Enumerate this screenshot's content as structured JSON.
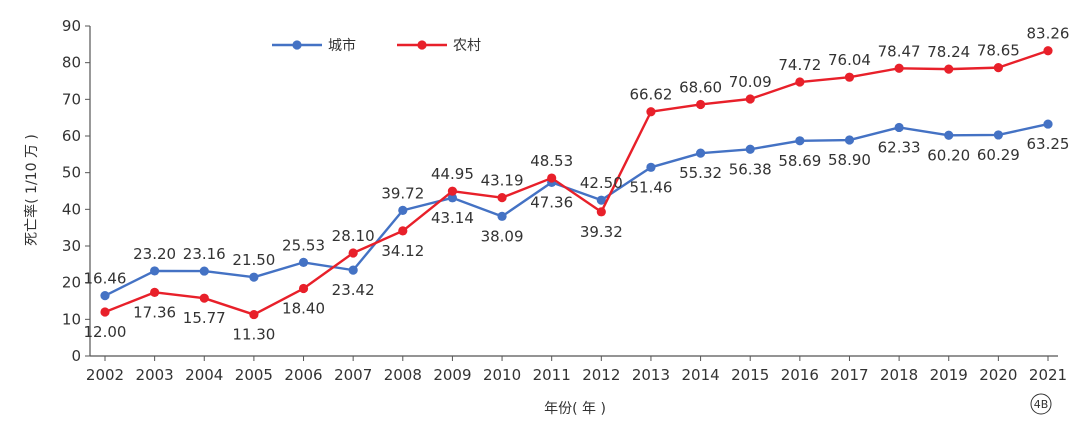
{
  "chart_data": {
    "type": "line",
    "title": "",
    "xlabel": "年份( 年 )",
    "ylabel": "死亡率( 1/10 万 )",
    "ylim": [
      0,
      90
    ],
    "yticks": [
      0,
      10,
      20,
      30,
      40,
      50,
      60,
      70,
      80,
      90
    ],
    "grid": false,
    "legend_position": "top-left",
    "categories": [
      "2002",
      "2003",
      "2004",
      "2005",
      "2006",
      "2007",
      "2008",
      "2009",
      "2010",
      "2011",
      "2012",
      "2013",
      "2014",
      "2015",
      "2016",
      "2017",
      "2018",
      "2019",
      "2020",
      "2021"
    ],
    "series": [
      {
        "name": "城市",
        "color": "#4472c4",
        "values": [
          16.46,
          23.2,
          23.16,
          21.5,
          25.53,
          23.42,
          39.72,
          43.14,
          38.09,
          47.36,
          42.5,
          51.46,
          55.32,
          56.38,
          58.69,
          58.9,
          62.33,
          60.2,
          60.29,
          63.25
        ],
        "labels": [
          "16.46",
          "23.20",
          "23.16",
          "21.50",
          "25.53",
          "23.42",
          "39.72",
          "43.14",
          "38.09",
          "47.36",
          "42.50",
          "51.46",
          "55.32",
          "56.38",
          "58.69",
          "58.90",
          "62.33",
          "60.20",
          "60.29",
          "63.25"
        ]
      },
      {
        "name": "农村",
        "color": "#e8202a",
        "values": [
          12.0,
          17.36,
          15.77,
          11.3,
          18.4,
          28.1,
          34.12,
          44.95,
          43.19,
          48.53,
          39.32,
          66.62,
          68.6,
          70.09,
          74.72,
          76.04,
          78.47,
          78.24,
          78.65,
          83.26
        ],
        "labels": [
          "12.00",
          "17.36",
          "15.77",
          "11.30",
          "18.40",
          "28.10",
          "34.12",
          "44.95",
          "43.19",
          "48.53",
          "39.32",
          "66.62",
          "68.60",
          "70.09",
          "74.72",
          "76.04",
          "78.47",
          "78.24",
          "78.65",
          "83.26"
        ]
      }
    ]
  },
  "corner_mark": "4B"
}
